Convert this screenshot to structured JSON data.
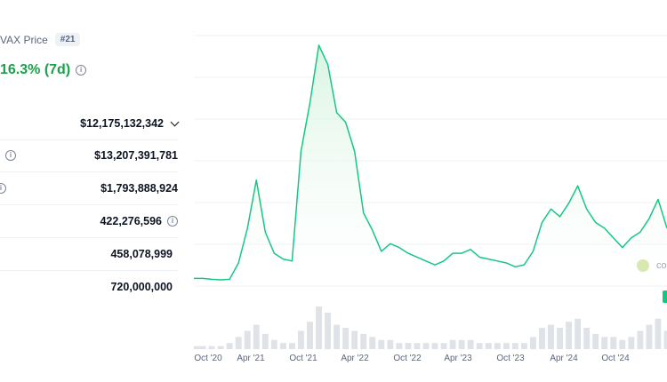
{
  "header": {
    "title": "VAX Price",
    "rank": "#21",
    "change": "16.3% (7d)"
  },
  "stats": [
    {
      "value": "$12,175,132,342",
      "has_dropdown": true
    },
    {
      "value": "$13,207,391,781",
      "lead_info_icon": true
    },
    {
      "value": "$1,793,888,924",
      "lead_info_icon": true
    },
    {
      "value": "422,276,596",
      "trail_info_icon": true
    },
    {
      "value": "458,078,999"
    },
    {
      "value": "720,000,000"
    }
  ],
  "chart": {
    "x_labels": [
      "Oct '20",
      "Apr '21",
      "Oct '21",
      "Apr '22",
      "Oct '22",
      "Apr '23",
      "Oct '23",
      "Apr '24",
      "Oct '24"
    ],
    "watermark": "co",
    "colors": {
      "line": "#16c784",
      "fill_top": "#d4f3df",
      "volume": "#dfe3e8",
      "grid": "#eff2f5",
      "positive": "#1a9f4a"
    }
  },
  "chart_data": {
    "type": "area",
    "x": [
      "2020-09",
      "2020-10",
      "2020-11",
      "2020-12",
      "2021-01",
      "2021-02",
      "2021-03",
      "2021-04",
      "2021-05",
      "2021-06",
      "2021-07",
      "2021-08",
      "2021-09",
      "2021-10",
      "2021-11",
      "2021-12",
      "2022-01",
      "2022-02",
      "2022-03",
      "2022-04",
      "2022-05",
      "2022-06",
      "2022-07",
      "2022-08",
      "2022-09",
      "2022-10",
      "2022-11",
      "2022-12",
      "2023-01",
      "2023-02",
      "2023-03",
      "2023-04",
      "2023-05",
      "2023-06",
      "2023-07",
      "2023-08",
      "2023-09",
      "2023-10",
      "2023-11",
      "2023-12",
      "2024-01",
      "2024-02",
      "2024-03",
      "2024-04",
      "2024-05",
      "2024-06",
      "2024-07",
      "2024-08",
      "2024-09",
      "2024-10",
      "2024-11",
      "2024-12",
      "2025-01",
      "2025-02"
    ],
    "values": [
      4,
      4,
      3.5,
      3.2,
      3.5,
      12,
      30,
      55,
      28,
      17,
      14,
      13,
      70,
      95,
      125,
      115,
      90,
      85,
      70,
      38,
      29,
      18,
      22,
      20,
      17,
      15,
      13,
      11,
      13,
      17,
      17,
      19,
      15,
      14,
      13,
      12,
      10,
      11,
      18,
      33,
      40,
      36,
      43,
      52,
      40,
      33,
      30,
      25,
      20,
      25,
      28,
      35,
      45,
      30
    ],
    "volume": [
      1,
      1,
      1,
      1,
      2,
      4,
      6,
      8,
      5,
      3,
      2,
      2,
      6,
      9,
      14,
      12,
      8,
      7,
      6,
      5,
      4,
      3,
      3,
      2,
      2,
      2,
      2,
      2,
      2,
      3,
      3,
      3,
      2,
      2,
      2,
      2,
      2,
      2,
      4,
      7,
      8,
      7,
      9,
      10,
      7,
      5,
      4,
      4,
      3,
      4,
      6,
      8,
      10,
      6
    ],
    "xlabel": "",
    "ylabel": "",
    "grid": true
  }
}
